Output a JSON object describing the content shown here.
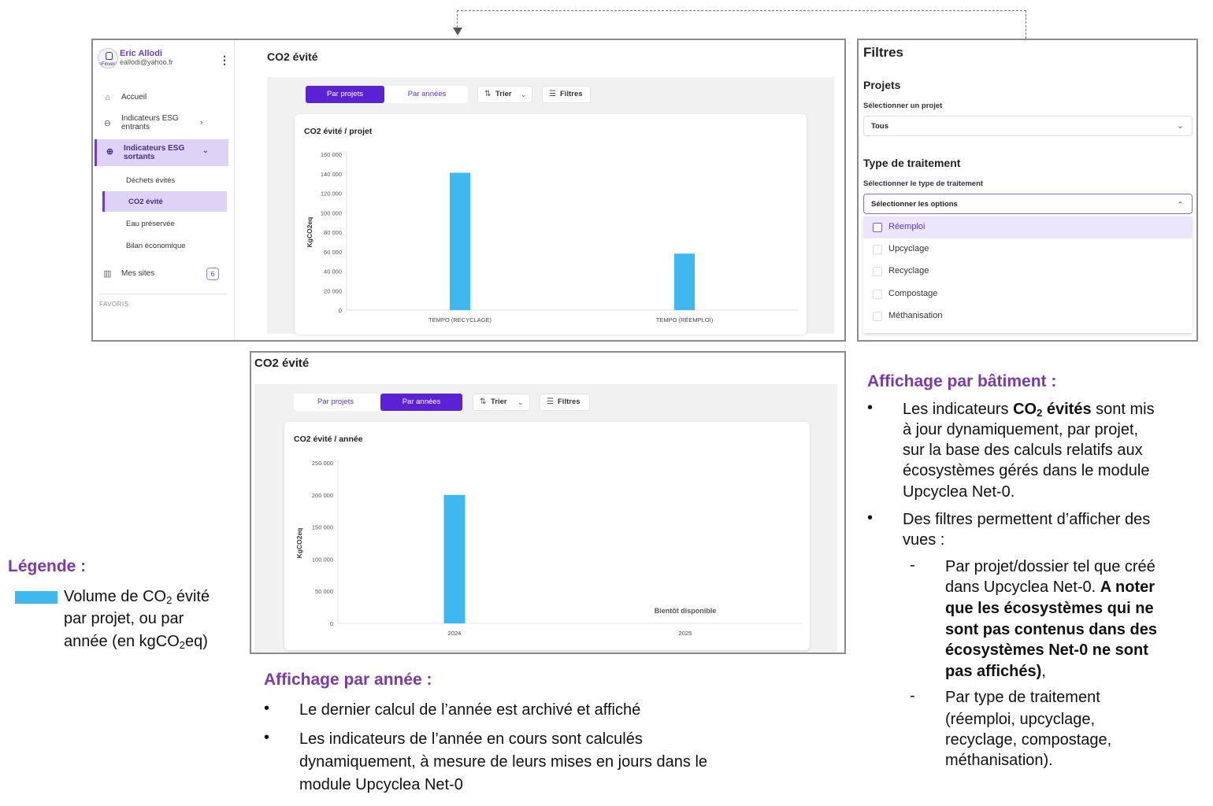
{
  "sidebar": {
    "user_name": "Eric Allodi",
    "user_email": "eallodi@yahoo.fr",
    "avatar_text": "eFinvest",
    "items": [
      {
        "label": "Accueil",
        "icon": "home-icon"
      },
      {
        "label": "Indicateurs ESG entrants",
        "icon": "arrow-down-circle-icon"
      },
      {
        "label": "Indicateurs ESG sortants",
        "icon": "arrow-up-circle-icon"
      }
    ],
    "sub_items": [
      "Déchets évités",
      "CO2 évité",
      "Eau préservée",
      "Bilan économique"
    ],
    "sites_label": "Mes sites",
    "sites_count": "6",
    "favoris": "FAVORIS"
  },
  "projects_view": {
    "title": "CO2 évité",
    "tab_projects": "Par projets",
    "tab_years": "Par années",
    "sort_label": "Trier",
    "filters_label": "Filtres",
    "card_title": "CO2 évité / projet"
  },
  "years_view": {
    "title": "CO2 évité",
    "tab_projects": "Par projets",
    "tab_years": "Par années",
    "sort_label": "Trier",
    "filters_label": "Filtres",
    "card_title": "CO2 évité / année",
    "unavailable_note": "Bientôt disponible"
  },
  "filters_panel": {
    "title": "Filtres",
    "projects_heading": "Projets",
    "project_label": "Sélectionner un projet",
    "project_value": "Tous",
    "treatment_heading": "Type de traitement",
    "treatment_label": "Sélectionner le type de traitement",
    "treatment_placeholder": "Sélectionner les options",
    "options": [
      "Réemploi",
      "Upcyclage",
      "Recyclage",
      "Compostage",
      "Méthanisation"
    ]
  },
  "annotations": {
    "legend_title": "Légende :",
    "legend_l1a": "Volume de CO",
    "legend_l1sub": "2",
    "legend_l1b": " évité",
    "legend_l2": "par projet, ou par",
    "legend_l3a": "année (en kgCO",
    "legend_l3sub": "2",
    "legend_l3b": "eq)",
    "building_heading": "Affichage par bâtiment :",
    "b1_l1a": "Les indicateurs ",
    "b1_l1bold": "CO",
    "b1_l1boldsub": "2",
    "b1_l1bold2": " évités",
    "b1_l1c": " sont mis",
    "b1_l2": "à jour dynamiquement, par projet,",
    "b1_l3": "sur la base des calculs relatifs aux",
    "b1_l4": "écosystèmes gérés dans le module",
    "b1_l5": "Upcyclea Net-0.",
    "b2_l1": "Des filtres permettent d’afficher des",
    "b2_l2": "vues :",
    "s1_l1": "Par projet/dossier tel que créé",
    "s1_l2a": "dans Upcyclea Net-0. ",
    "s1_l2bold": "A noter",
    "s1_l3": "que les écosystèmes qui ne",
    "s1_l4": "sont pas contenus dans des",
    "s1_l5": "écosystèmes Net-0 ne sont",
    "s1_l6bold": "pas affichés)",
    "s1_l6b": ",",
    "s2_l1": "Par type de traitement",
    "s2_l2": "(réemploi, upcyclage,",
    "s2_l3": "recyclage, compostage,",
    "s2_l4": "méthanisation).",
    "year_heading": "Affichage par année :",
    "y1": "Le dernier calcul de l’année est archivé et affiché",
    "y2_l1": "Les indicateurs de l’année en cours sont calculés",
    "y2_l2": "dynamiquement, à mesure de leurs mises en jours dans le",
    "y2_l3": "module Upcyclea Net-0",
    "bullet": "•",
    "dash": "-"
  },
  "colors": {
    "bar": "#3fb8f0",
    "accent": "#5b22d4",
    "heading": "#7a3aa8"
  },
  "chart_data": [
    {
      "type": "bar",
      "title": "CO2 évité / projet",
      "categories": [
        "TEMPO (RECYCLAGE)",
        "TEMPO (RÉEMPLOI)"
      ],
      "values": [
        141000,
        58000
      ],
      "ylabel": "KgCO2eq",
      "ylim": [
        0,
        160000
      ],
      "yticks": [
        0,
        20000,
        40000,
        60000,
        80000,
        100000,
        120000,
        140000,
        160000
      ],
      "ytick_labels": [
        "0",
        "20 000",
        "40 000",
        "60 000",
        "80 000",
        "100 000",
        "120 000",
        "140 000",
        "160 000"
      ],
      "grid": false
    },
    {
      "type": "bar",
      "title": "CO2 évité / année",
      "categories": [
        "2024",
        "2025"
      ],
      "values": [
        200000,
        null
      ],
      "ylabel": "KgCO2eq",
      "ylim": [
        0,
        250000
      ],
      "yticks": [
        0,
        50000,
        100000,
        150000,
        200000,
        250000
      ],
      "ytick_labels": [
        "0",
        "50 000",
        "100 000",
        "150 000",
        "200 000",
        "250 000"
      ],
      "grid": false
    }
  ]
}
